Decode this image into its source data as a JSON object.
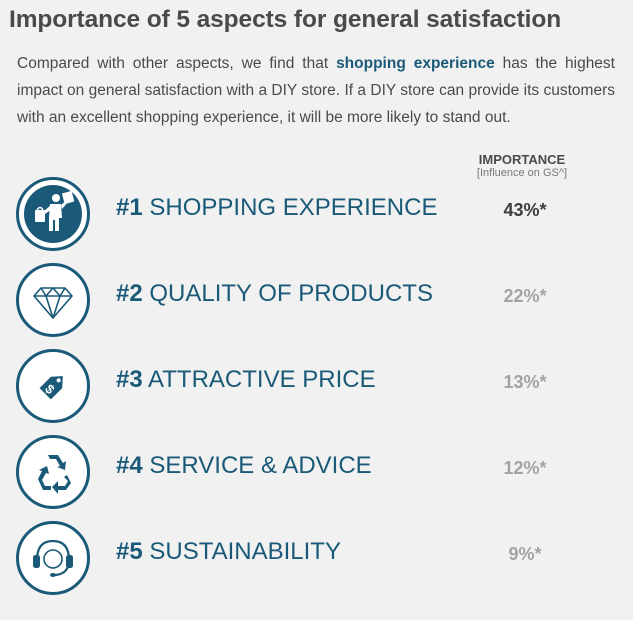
{
  "title": "Importance of 5 aspects for general satisfaction",
  "intro": {
    "before": "Compared with other aspects, we find that ",
    "highlight": "shopping experience",
    "after": " has the highest impact on general satisfaction with a DIY store. If a DIY store can provide its customers with an excellent shopping experience, it will be more likely to stand out."
  },
  "importance_header": {
    "title": "IMPORTANCE",
    "subtitle": "[Influence on GS^]"
  },
  "colors": {
    "accent": "#1a5a78",
    "top_value": "#3d3d3d",
    "other_value": "#a3a3a3"
  },
  "aspects": [
    {
      "rank": "#1",
      "label": "SHOPPING EXPERIENCE",
      "value": "43%*",
      "icon": "shopper-icon"
    },
    {
      "rank": "#2",
      "label": "QUALITY OF PRODUCTS",
      "value": "22%*",
      "icon": "diamond-icon"
    },
    {
      "rank": "#3",
      "label": "ATTRACTIVE PRICE",
      "value": "13%*",
      "icon": "price-tag-icon"
    },
    {
      "rank": "#4",
      "label": "SERVICE & ADVICE",
      "value": "12%*",
      "icon": "recycle-icon"
    },
    {
      "rank": "#5",
      "label": "SUSTAINABILITY",
      "value": "9%*",
      "icon": "headset-icon"
    }
  ]
}
